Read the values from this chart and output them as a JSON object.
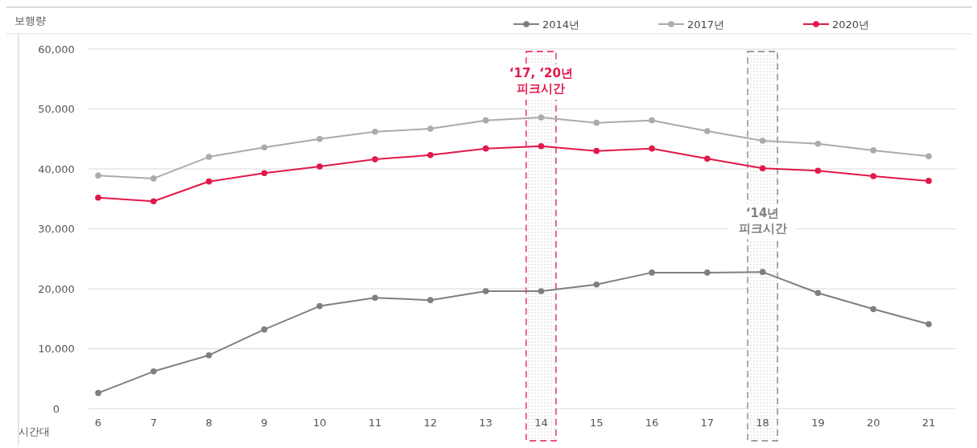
{
  "chart_data": {
    "type": "line",
    "ylabel": "보행량",
    "xlabel": "시간대",
    "categories": [
      "6",
      "7",
      "8",
      "9",
      "10",
      "11",
      "12",
      "13",
      "14",
      "15",
      "16",
      "17",
      "18",
      "19",
      "20",
      "21"
    ],
    "series": [
      {
        "name": "2014년",
        "color": "#7f7f7f",
        "values": [
          2600,
          6200,
          8900,
          13200,
          17100,
          18500,
          18100,
          19600,
          19600,
          20700,
          22700,
          22700,
          22800,
          19300,
          16600,
          14100
        ]
      },
      {
        "name": "2017년",
        "color": "#ababab",
        "values": [
          38900,
          38400,
          42000,
          43600,
          45000,
          46200,
          46700,
          48100,
          48600,
          47700,
          48100,
          46300,
          44700,
          44200,
          43100,
          42100
        ]
      },
      {
        "name": "2020년",
        "color": "#e0194a",
        "values": [
          35200,
          34600,
          37900,
          39300,
          40400,
          41600,
          42300,
          43400,
          43800,
          43000,
          43400,
          41700,
          40100,
          39700,
          38800,
          38000
        ]
      }
    ],
    "ylim": [
      0,
      60000
    ],
    "yticks": [
      {
        "value": 0,
        "label": "0"
      },
      {
        "value": 10000,
        "label": "10,000"
      },
      {
        "value": 20000,
        "label": "20,000"
      },
      {
        "value": 30000,
        "label": "30,000"
      },
      {
        "value": 40000,
        "label": "40,000"
      },
      {
        "value": 50000,
        "label": "50,000"
      },
      {
        "value": 60000,
        "label": "60,000"
      }
    ],
    "bands": [
      {
        "axis": "x",
        "from": "14",
        "to": "14",
        "label": "‘17, ‘20년 피크시간",
        "color": "#e0194a"
      },
      {
        "axis": "x",
        "from": "18",
        "to": "18",
        "label": "‘14년 피크시간",
        "color": "#808080"
      }
    ],
    "grid": "y",
    "legend": "top right",
    "marker": "circle",
    "line_style": "solid"
  }
}
